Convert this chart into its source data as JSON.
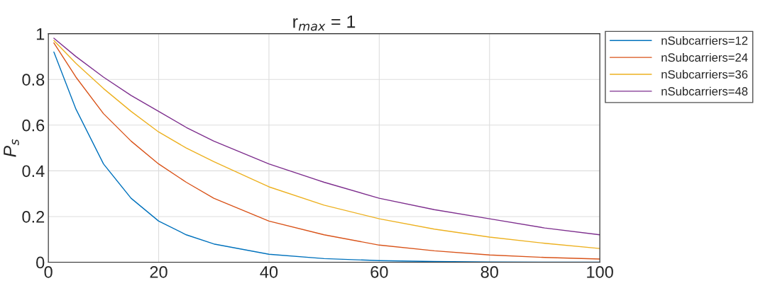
{
  "chart_data": {
    "type": "line",
    "title": "r$_{max}$ = 1",
    "ylabel": "P$_{s}$",
    "x": [
      1,
      5,
      10,
      15,
      20,
      25,
      30,
      40,
      50,
      60,
      70,
      80,
      90,
      100
    ],
    "series": [
      {
        "name": "nSubcarriers=12",
        "color": "#0072bd",
        "values": [
          0.92,
          0.67,
          0.43,
          0.28,
          0.18,
          0.12,
          0.08,
          0.035,
          0.016,
          0.007,
          0.003,
          0.001,
          0,
          0
        ]
      },
      {
        "name": "nSubcarriers=24",
        "color": "#d95319",
        "values": [
          0.96,
          0.81,
          0.65,
          0.53,
          0.43,
          0.35,
          0.28,
          0.18,
          0.12,
          0.075,
          0.05,
          0.032,
          0.021,
          0.014
        ]
      },
      {
        "name": "nSubcarriers=36",
        "color": "#edb120",
        "values": [
          0.97,
          0.87,
          0.76,
          0.66,
          0.57,
          0.5,
          0.44,
          0.33,
          0.25,
          0.19,
          0.145,
          0.11,
          0.083,
          0.06
        ]
      },
      {
        "name": "nSubcarriers=48",
        "color": "#7e2f8e",
        "values": [
          0.98,
          0.9,
          0.81,
          0.73,
          0.66,
          0.59,
          0.53,
          0.43,
          0.35,
          0.28,
          0.23,
          0.19,
          0.15,
          0.12
        ]
      }
    ],
    "xlim": [
      0,
      100
    ],
    "ylim": [
      0,
      1
    ],
    "xticks": [
      0,
      20,
      40,
      60,
      80,
      100
    ],
    "yticks": [
      0,
      0.2,
      0.4,
      0.6,
      0.8,
      1
    ],
    "grid": true,
    "legend": "top right",
    "line_style": "solid",
    "marker": "none"
  }
}
